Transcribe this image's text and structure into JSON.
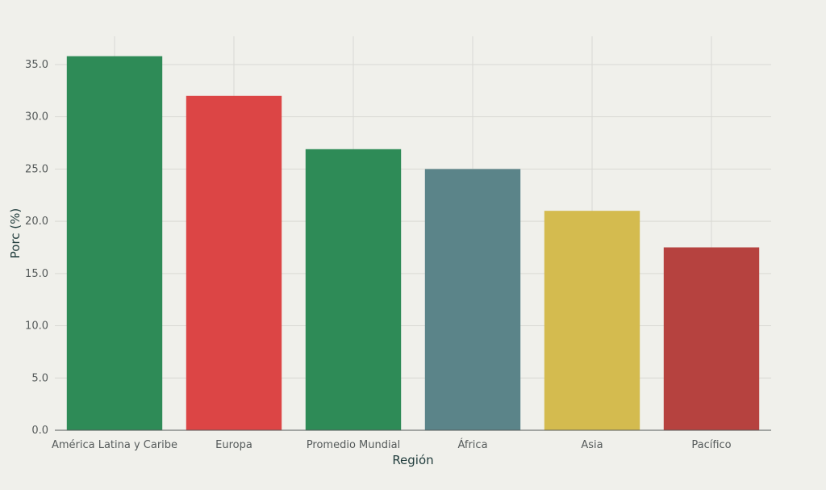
{
  "chart_data": {
    "type": "bar",
    "title": "",
    "xlabel": "Región",
    "ylabel": "Porc (%)",
    "categories": [
      "América Latina y Caribe",
      "Europa",
      "Promedio Mundial",
      "África",
      "Asia",
      "Pacífico"
    ],
    "values": [
      35.8,
      32.0,
      26.9,
      25.0,
      21.0,
      17.5
    ],
    "bar_colors": [
      "#2e8b57",
      "#dc4545",
      "#2e8b57",
      "#5b8489",
      "#d4bb4f",
      "#b6423f"
    ],
    "ylim": [
      0,
      37.7
    ],
    "yticks": [
      "0.0",
      "5.0",
      "10.0",
      "15.0",
      "20.0",
      "25.0",
      "30.0",
      "35.0"
    ],
    "grid": true,
    "legend": "none"
  }
}
